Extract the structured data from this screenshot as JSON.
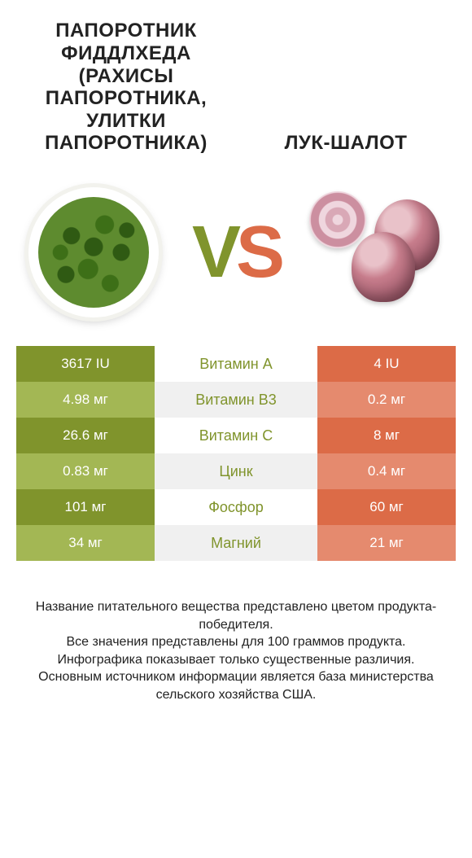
{
  "colors": {
    "left_dark": "#80942c",
    "left_light": "#a3b754",
    "right_dark": "#dc6b47",
    "right_light": "#e58a6e",
    "mid_bg": "#ffffff",
    "mid_alt_bg": "#f0f0f0",
    "text_white": "#ffffff",
    "text_dark": "#222222"
  },
  "titles": {
    "left": "ПАПОРОТНИК ФИДДЛХЕДА (РАХИСЫ ПАПОРОТНИКА, УЛИТКИ ПАПОРОТНИКА)",
    "right": "ЛУК-ШАЛОТ"
  },
  "vs": {
    "v": "V",
    "s": "S"
  },
  "rows": [
    {
      "left": "3617 IU",
      "label": "Витамин A",
      "right": "4 IU",
      "winner": "left"
    },
    {
      "left": "4.98 мг",
      "label": "Витамин B3",
      "right": "0.2 мг",
      "winner": "left"
    },
    {
      "left": "26.6 мг",
      "label": "Витамин C",
      "right": "8 мг",
      "winner": "left"
    },
    {
      "left": "0.83 мг",
      "label": "Цинк",
      "right": "0.4 мг",
      "winner": "left"
    },
    {
      "left": "101 мг",
      "label": "Фосфор",
      "right": "60 мг",
      "winner": "left"
    },
    {
      "left": "34 мг",
      "label": "Магний",
      "right": "21 мг",
      "winner": "left"
    }
  ],
  "footer": {
    "l1": "Название питательного вещества представлено цветом продукта-победителя.",
    "l2": "Все значения представлены для 100 граммов продукта.",
    "l3": "Инфографика показывает только существенные различия.",
    "l4": "Основным источником информации является база министерства сельского хозяйства США."
  }
}
